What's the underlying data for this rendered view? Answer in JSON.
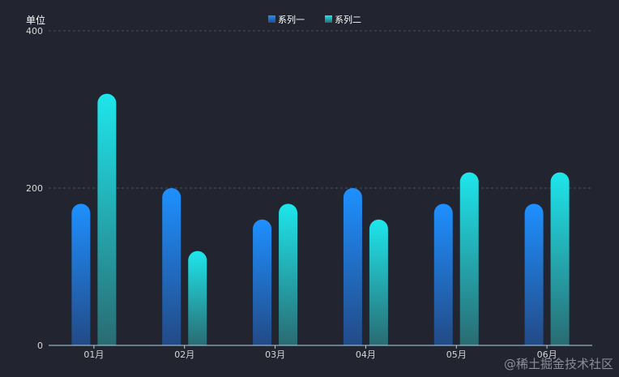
{
  "chart_data": {
    "type": "bar",
    "categories": [
      "01月",
      "02月",
      "03月",
      "04月",
      "05月",
      "06月"
    ],
    "series": [
      {
        "name": "系列一",
        "values": [
          180,
          200,
          160,
          200,
          180,
          180
        ],
        "color_top": "#1e90ff",
        "color_bottom": "#234a86"
      },
      {
        "name": "系列二",
        "values": [
          320,
          120,
          180,
          160,
          220,
          220
        ],
        "color_top": "#1ee6ec",
        "color_bottom": "#2a6b72"
      }
    ],
    "ylabel": "单位",
    "ylim": [
      0,
      400
    ],
    "yticks": [
      "0",
      "200",
      "400"
    ],
    "grid": true,
    "legend_position": "top-center",
    "colors": {
      "background": "#22252f",
      "axis": "#a9d4e6",
      "grid": "#4a4f5a",
      "text": "#d7d7d7"
    }
  },
  "watermark": "@稀土掘金技术社区"
}
